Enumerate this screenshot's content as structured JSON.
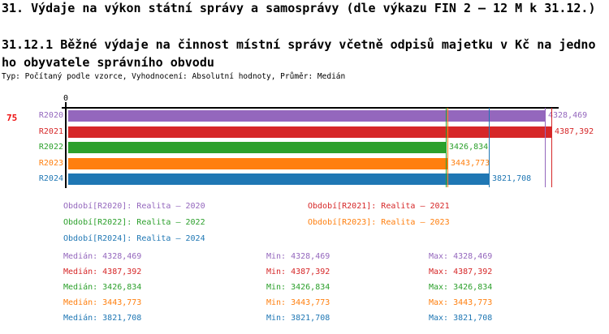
{
  "header": {
    "title": "31. Výdaje na výkon státní správy a samosprávy (dle výkazu FIN 2 – 12 M k 31.12.)",
    "subtitle_line1": "31.12.1 Běžné výdaje na činnost místní správy včetně odpisů majetku v Kč na jedno",
    "subtitle_line2": "ho obyvatele správního obvodu",
    "meta": "Typ: Počítaný podle vzorce, Vyhodnocení: Absolutní hodnoty, Průměr: Medián"
  },
  "page_number": "75",
  "colors": {
    "r2020": "#9467bd",
    "r2021": "#d62728",
    "r2022": "#2ca02c",
    "r2023": "#ff7f0e",
    "r2024": "#1f77b4",
    "page_number": "#ee1111",
    "axis": "#000000"
  },
  "chart_data": {
    "type": "bar",
    "orientation": "horizontal",
    "title": "31.12.1 Běžné výdaje na činnost místní správy včetně odpisů majetku v Kč na jednoho obyvatele správního obvodu",
    "xlabel": "",
    "ylabel": "",
    "x_axis": {
      "origin_label": "0",
      "xlim": [
        0,
        4500
      ],
      "grid": false
    },
    "categories": [
      "R2020",
      "R2021",
      "R2022",
      "R2023",
      "R2024"
    ],
    "values": [
      4328.469,
      4387.392,
      3426.834,
      3443.773,
      3821.708
    ],
    "value_labels": [
      "4328,469",
      "4387,392",
      "3426,834",
      "3443,773",
      "3821,708"
    ],
    "colors": [
      "#9467bd",
      "#d62728",
      "#2ca02c",
      "#ff7f0e",
      "#1f77b4"
    ],
    "median_marker_values": [
      4328.469,
      4387.392,
      3426.834,
      3443.773,
      3821.708
    ],
    "legend_position": "bottom"
  },
  "legend": {
    "items": [
      {
        "label": "Období[R2020]: Realita – 2020",
        "color": "#9467bd"
      },
      {
        "label": "Období[R2021]: Realita – 2021",
        "color": "#d62728"
      },
      {
        "label": "Období[R2022]: Realita – 2022",
        "color": "#2ca02c"
      },
      {
        "label": "Období[R2023]: Realita – 2023",
        "color": "#ff7f0e"
      },
      {
        "label": "Období[R2024]: Realita – 2024",
        "color": "#1f77b4"
      }
    ]
  },
  "stats": {
    "median_label": "Medián",
    "min_label": "Min",
    "max_label": "Max",
    "rows": [
      {
        "value": "4328,469",
        "color": "#9467bd"
      },
      {
        "value": "4387,392",
        "color": "#d62728"
      },
      {
        "value": "3426,834",
        "color": "#2ca02c"
      },
      {
        "value": "3443,773",
        "color": "#ff7f0e"
      },
      {
        "value": "3821,708",
        "color": "#1f77b4"
      }
    ]
  }
}
